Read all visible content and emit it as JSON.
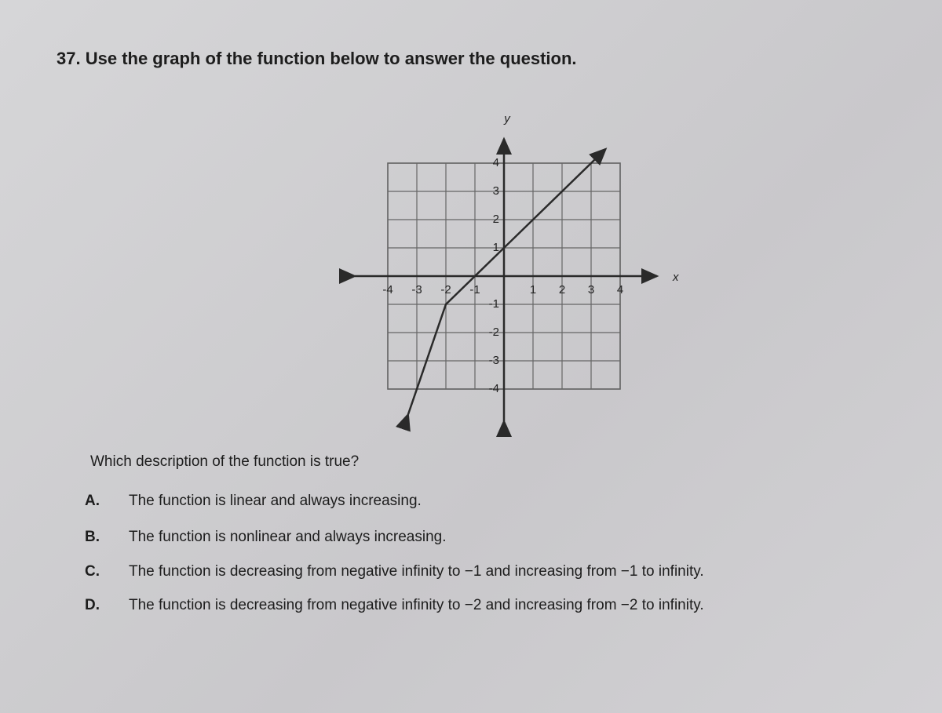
{
  "question": {
    "number": "37.",
    "text": "Use the graph of the function below to answer the question."
  },
  "graph": {
    "x_label": "x",
    "y_label": "y",
    "xlim": [
      -4,
      4
    ],
    "ylim": [
      -4,
      4
    ],
    "xticks": [
      -4,
      -3,
      -2,
      -1,
      1,
      2,
      3,
      4
    ],
    "yticks": [
      -4,
      -3,
      -2,
      -1,
      1,
      2,
      3,
      4
    ],
    "grid": true,
    "color": "#2a2a2a",
    "line": {
      "x": [
        -3.3,
        -2,
        3.5
      ],
      "y": [
        -4.9,
        -1,
        4.5
      ]
    }
  },
  "prompt": "Which description of the function is true?",
  "options": [
    {
      "letter": "A.",
      "text": "The function is linear and always increasing."
    },
    {
      "letter": "B.",
      "text": "The function is nonlinear and always increasing."
    },
    {
      "letter": "C.",
      "text": "The function is decreasing from negative infinity to −1 and increasing from −1 to infinity."
    },
    {
      "letter": "D.",
      "text": "The function is decreasing from negative infinity to −2 and increasing from −2 to infinity."
    }
  ]
}
